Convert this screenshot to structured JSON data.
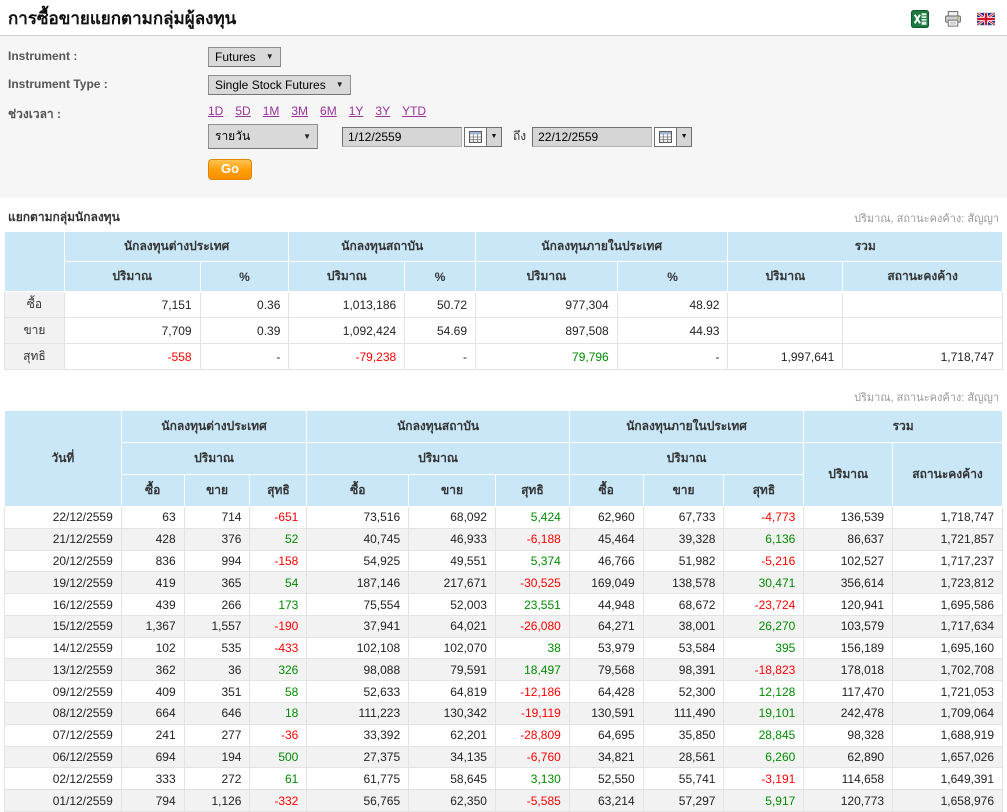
{
  "colors": {
    "table_header_bg": "#c9e7f7",
    "negative": "#ff0000",
    "positive": "#008a00",
    "link": "#993399",
    "go_button": "#ff9d05",
    "note_text": "#999999",
    "stripe": "#f2f2f2",
    "form_bg": "#f6f6f6"
  },
  "page": {
    "title": "การซื้อขายแยกตามกลุ่มผู้ลงทุน"
  },
  "toolbar": {
    "icons": [
      "excel-export-icon",
      "print-icon",
      "english-language-flag-icon"
    ]
  },
  "form": {
    "instrument_label": "Instrument :",
    "instrument_value": "Futures",
    "instrument_type_label": "Instrument Type :",
    "instrument_type_value": "Single Stock Futures",
    "period_label": "ช่วงเวลา :",
    "period_links": [
      "1D",
      "5D",
      "1M",
      "3M",
      "6M",
      "1Y",
      "3Y",
      "YTD"
    ],
    "frequency_value": "รายวัน",
    "date_from": "1/12/2559",
    "to_label": "ถึง",
    "date_to": "22/12/2559",
    "go_label": "Go"
  },
  "summary": {
    "section_title": "แยกตามกลุ่มนักลงทุน",
    "unit_note": "ปริมาณ, สถานะคงค้าง: สัญญา",
    "col_groups": [
      "นักลงทุนต่างประเทศ",
      "นักลงทุนสถาบัน",
      "นักลงทุนภายในประเทศ",
      "รวม"
    ],
    "volume_label": "ปริมาณ",
    "percent_label": "%",
    "oi_label": "สถานะคงค้าง",
    "sign_cols": [
      0,
      2,
      4
    ],
    "rows": [
      {
        "label": "ซื้อ",
        "sign": false,
        "cells": [
          "7,151",
          "0.36",
          "1,013,186",
          "50.72",
          "977,304",
          "48.92",
          "",
          ""
        ]
      },
      {
        "label": "ขาย",
        "sign": false,
        "cells": [
          "7,709",
          "0.39",
          "1,092,424",
          "54.69",
          "897,508",
          "44.93",
          "",
          ""
        ]
      },
      {
        "label": "สุทธิ",
        "sign": true,
        "cells": [
          "-558",
          "-",
          "-79,238",
          "-",
          "79,796",
          "-",
          "1,997,641",
          "1,718,747"
        ]
      }
    ]
  },
  "daily": {
    "unit_note": "ปริมาณ, สถานะคงค้าง: สัญญา",
    "date_label": "วันที่",
    "col_groups": [
      "นักลงทุนต่างประเทศ",
      "นักลงทุนสถาบัน",
      "นักลงทุนภายในประเทศ",
      "รวม"
    ],
    "volume_label": "ปริมาณ",
    "buy_label": "ซื้อ",
    "sell_label": "ขาย",
    "net_label": "สุทธิ",
    "oi_label": "สถานะคงค้าง",
    "net_cols": [
      3,
      6,
      9
    ],
    "rows": [
      [
        "22/12/2559",
        "63",
        "714",
        "-651",
        "73,516",
        "68,092",
        "5,424",
        "62,960",
        "67,733",
        "-4,773",
        "136,539",
        "1,718,747"
      ],
      [
        "21/12/2559",
        "428",
        "376",
        "52",
        "40,745",
        "46,933",
        "-6,188",
        "45,464",
        "39,328",
        "6,136",
        "86,637",
        "1,721,857"
      ],
      [
        "20/12/2559",
        "836",
        "994",
        "-158",
        "54,925",
        "49,551",
        "5,374",
        "46,766",
        "51,982",
        "-5,216",
        "102,527",
        "1,717,237"
      ],
      [
        "19/12/2559",
        "419",
        "365",
        "54",
        "187,146",
        "217,671",
        "-30,525",
        "169,049",
        "138,578",
        "30,471",
        "356,614",
        "1,723,812"
      ],
      [
        "16/12/2559",
        "439",
        "266",
        "173",
        "75,554",
        "52,003",
        "23,551",
        "44,948",
        "68,672",
        "-23,724",
        "120,941",
        "1,695,586"
      ],
      [
        "15/12/2559",
        "1,367",
        "1,557",
        "-190",
        "37,941",
        "64,021",
        "-26,080",
        "64,271",
        "38,001",
        "26,270",
        "103,579",
        "1,717,634"
      ],
      [
        "14/12/2559",
        "102",
        "535",
        "-433",
        "102,108",
        "102,070",
        "38",
        "53,979",
        "53,584",
        "395",
        "156,189",
        "1,695,160"
      ],
      [
        "13/12/2559",
        "362",
        "36",
        "326",
        "98,088",
        "79,591",
        "18,497",
        "79,568",
        "98,391",
        "-18,823",
        "178,018",
        "1,702,708"
      ],
      [
        "09/12/2559",
        "409",
        "351",
        "58",
        "52,633",
        "64,819",
        "-12,186",
        "64,428",
        "52,300",
        "12,128",
        "117,470",
        "1,721,053"
      ],
      [
        "08/12/2559",
        "664",
        "646",
        "18",
        "111,223",
        "130,342",
        "-19,119",
        "130,591",
        "111,490",
        "19,101",
        "242,478",
        "1,709,064"
      ],
      [
        "07/12/2559",
        "241",
        "277",
        "-36",
        "33,392",
        "62,201",
        "-28,809",
        "64,695",
        "35,850",
        "28,845",
        "98,328",
        "1,688,919"
      ],
      [
        "06/12/2559",
        "694",
        "194",
        "500",
        "27,375",
        "34,135",
        "-6,760",
        "34,821",
        "28,561",
        "6,260",
        "62,890",
        "1,657,026"
      ],
      [
        "02/12/2559",
        "333",
        "272",
        "61",
        "61,775",
        "58,645",
        "3,130",
        "52,550",
        "55,741",
        "-3,191",
        "114,658",
        "1,649,391"
      ],
      [
        "01/12/2559",
        "794",
        "1,126",
        "-332",
        "56,765",
        "62,350",
        "-5,585",
        "63,214",
        "57,297",
        "5,917",
        "120,773",
        "1,658,976"
      ]
    ]
  }
}
